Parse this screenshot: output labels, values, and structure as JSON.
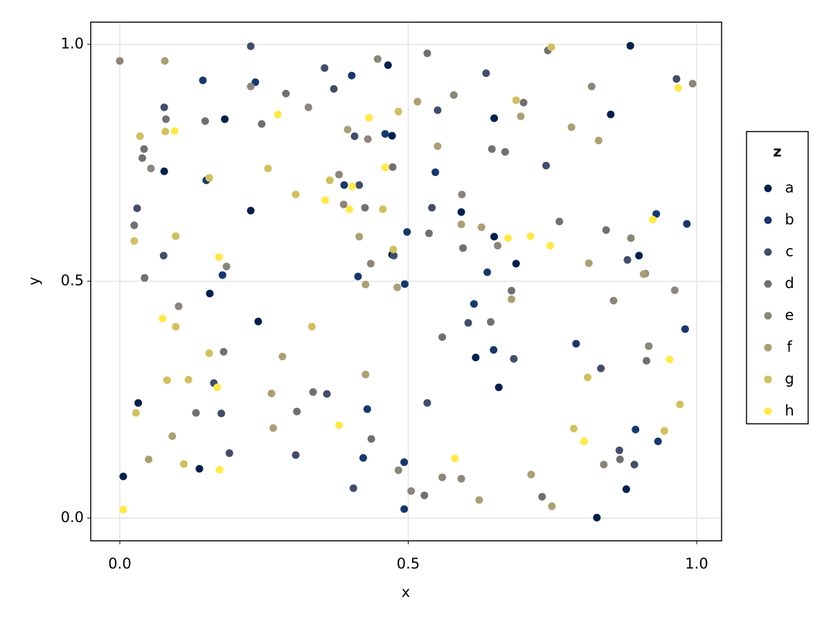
{
  "chart_data": {
    "type": "scatter",
    "x_label": "x",
    "y_label": "y",
    "legend_title": "z",
    "legend_position": "right",
    "grid": true,
    "xlim": [
      -0.0504,
      1.0432
    ],
    "ylim": [
      -0.048,
      1.0468
    ],
    "xticks": [
      {
        "value": 0,
        "label": "0.0"
      },
      {
        "value": 0.5,
        "label": "0.5"
      },
      {
        "value": 1,
        "label": "1.0"
      }
    ],
    "yticks": [
      {
        "value": 0,
        "label": "0.0"
      },
      {
        "value": 0.5,
        "label": "0.5"
      },
      {
        "value": 1,
        "label": "1.0"
      }
    ],
    "series": [
      {
        "name": "a",
        "color": "#00204d",
        "x": [
          0.006,
          0.032,
          0.077,
          0.182,
          0.227,
          0.24,
          0.156,
          0.138,
          0.465,
          0.472,
          0.472,
          0.592,
          0.649,
          0.649,
          0.687,
          0.657,
          0.617,
          0.885,
          0.851,
          0.9,
          0.878,
          0.827
        ],
        "values": [
          0.088,
          0.243,
          0.732,
          0.842,
          0.649,
          0.415,
          0.474,
          0.104,
          0.956,
          0.807,
          0.556,
          0.646,
          0.844,
          0.594,
          0.537,
          0.276,
          0.339,
          0.997,
          0.852,
          0.554,
          0.061,
          0.001
        ]
      },
      {
        "name": "b",
        "color": "#16386e",
        "x": [
          0.144,
          0.235,
          0.15,
          0.178,
          0.402,
          0.389,
          0.413,
          0.46,
          0.498,
          0.494,
          0.547,
          0.614,
          0.637,
          0.648,
          0.429,
          0.422,
          0.493,
          0.493,
          0.791,
          0.93,
          0.983,
          0.98,
          0.894,
          0.933
        ],
        "values": [
          0.924,
          0.92,
          0.713,
          0.513,
          0.934,
          0.703,
          0.51,
          0.811,
          0.604,
          0.494,
          0.73,
          0.452,
          0.519,
          0.355,
          0.23,
          0.127,
          0.118,
          0.019,
          0.368,
          0.642,
          0.621,
          0.399,
          0.187,
          0.162
        ]
      },
      {
        "name": "c",
        "color": "#414d6b",
        "x": [
          0.227,
          0.355,
          0.371,
          0.077,
          0.03,
          0.076,
          0.163,
          0.176,
          0.19,
          0.359,
          0.305,
          0.407,
          0.415,
          0.475,
          0.551,
          0.541,
          0.635,
          0.604,
          0.533,
          0.405,
          0.739,
          0.683,
          0.88,
          0.965,
          0.834,
          0.866,
          0.892
        ],
        "values": [
          0.996,
          0.95,
          0.906,
          0.867,
          0.654,
          0.554,
          0.285,
          0.221,
          0.137,
          0.262,
          0.133,
          0.806,
          0.703,
          0.554,
          0.861,
          0.655,
          0.939,
          0.412,
          0.243,
          0.063,
          0.744,
          0.336,
          0.545,
          0.927,
          0.316,
          0.143,
          0.113
        ]
      },
      {
        "name": "d",
        "color": "#707073",
        "x": [
          0.288,
          0.533,
          0.742,
          0.08,
          0.148,
          0.246,
          0.039,
          0.042,
          0.025,
          0.043,
          0.132,
          0.18,
          0.307,
          0.335,
          0.425,
          0.436,
          0.473,
          0.536,
          0.559,
          0.595,
          0.645,
          0.668,
          0.7,
          0.679,
          0.762,
          0.843,
          0.643,
          0.528,
          0.732,
          0.867,
          0.913
        ],
        "values": [
          0.896,
          0.981,
          0.987,
          0.842,
          0.838,
          0.832,
          0.76,
          0.779,
          0.618,
          0.507,
          0.222,
          0.351,
          0.225,
          0.266,
          0.655,
          0.167,
          0.741,
          0.601,
          0.382,
          0.57,
          0.779,
          0.773,
          0.877,
          0.48,
          0.626,
          0.608,
          0.414,
          0.048,
          0.045,
          0.124,
          0.332
        ]
      },
      {
        "name": "e",
        "color": "#8b857a",
        "x": [
          0,
          0.227,
          0.327,
          0.054,
          0.38,
          0.388,
          0.435,
          0.447,
          0.579,
          0.593,
          0.655,
          0.818,
          0.856,
          0.886,
          0.917,
          0.962,
          0.993,
          0.43,
          0.185,
          0.102,
          0.505,
          0.559,
          0.592,
          0.839,
          0.911,
          0.483
        ],
        "values": [
          0.965,
          0.911,
          0.867,
          0.738,
          0.725,
          0.662,
          0.537,
          0.969,
          0.893,
          0.683,
          0.575,
          0.911,
          0.459,
          0.591,
          0.363,
          0.481,
          0.917,
          0.8,
          0.531,
          0.447,
          0.057,
          0.086,
          0.083,
          0.113,
          0.516,
          0.101
        ]
      },
      {
        "name": "f",
        "color": "#aba074",
        "x": [
          0.078,
          0.05,
          0.091,
          0.263,
          0.266,
          0.282,
          0.395,
          0.415,
          0.426,
          0.426,
          0.516,
          0.551,
          0.592,
          0.627,
          0.623,
          0.695,
          0.679,
          0.713,
          0.749,
          0.783,
          0.83,
          0.813,
          0.908,
          0.481
        ],
        "values": [
          0.965,
          0.124,
          0.173,
          0.263,
          0.19,
          0.341,
          0.82,
          0.594,
          0.493,
          0.303,
          0.879,
          0.785,
          0.62,
          0.614,
          0.038,
          0.848,
          0.462,
          0.092,
          0.025,
          0.825,
          0.797,
          0.538,
          0.515,
          0.487
        ]
      },
      {
        "name": "g",
        "color": "#d2bf5e",
        "x": [
          0.035,
          0.025,
          0.028,
          0.079,
          0.097,
          0.097,
          0.082,
          0.119,
          0.111,
          0.155,
          0.155,
          0.257,
          0.305,
          0.333,
          0.364,
          0.456,
          0.483,
          0.474,
          0.687,
          0.748,
          0.811,
          0.787,
          0.944,
          0.971
        ],
        "values": [
          0.806,
          0.585,
          0.222,
          0.816,
          0.595,
          0.404,
          0.291,
          0.292,
          0.114,
          0.718,
          0.348,
          0.738,
          0.683,
          0.404,
          0.713,
          0.652,
          0.858,
          0.567,
          0.882,
          0.994,
          0.297,
          0.189,
          0.184,
          0.24
        ]
      },
      {
        "name": "h",
        "color": "#ffe945",
        "x": [
          0.006,
          0.095,
          0.074,
          0.172,
          0.169,
          0.173,
          0.274,
          0.356,
          0.398,
          0.403,
          0.38,
          0.432,
          0.46,
          0.581,
          0.673,
          0.712,
          0.746,
          0.805,
          0.924,
          0.953,
          0.968
        ],
        "values": [
          0.018,
          0.817,
          0.421,
          0.551,
          0.276,
          0.102,
          0.852,
          0.671,
          0.652,
          0.7,
          0.196,
          0.845,
          0.74,
          0.126,
          0.591,
          0.595,
          0.575,
          0.162,
          0.63,
          0.335,
          0.908
        ]
      }
    ]
  }
}
